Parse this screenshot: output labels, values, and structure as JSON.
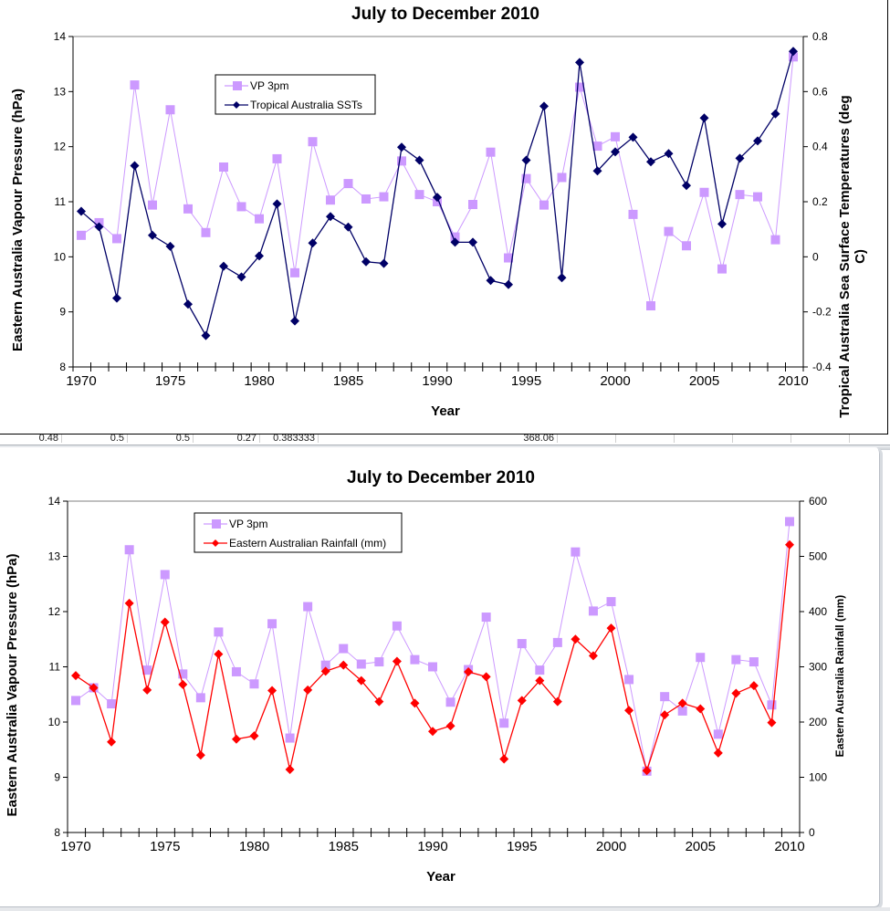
{
  "spreadsheet_strip": {
    "cells": [
      "0.48",
      "0.5",
      "0.5",
      "0.27",
      "0.383333",
      "368.06"
    ]
  },
  "chart_data": [
    {
      "type": "line",
      "title": "July to December 2010",
      "xlabel": "Year",
      "ylabel": "Eastern Australia Vapour Pressure (hPa)",
      "y2label": "Tropical Australia Sea Surface Temperatures (deg C)",
      "y2label_lines": [
        "Tropical Australia Sea Surface Temperatures (deg",
        "C)"
      ],
      "x": [
        1970,
        1971,
        1972,
        1973,
        1974,
        1975,
        1976,
        1977,
        1978,
        1979,
        1980,
        1981,
        1982,
        1983,
        1984,
        1985,
        1986,
        1987,
        1988,
        1989,
        1990,
        1991,
        1992,
        1993,
        1994,
        1995,
        1996,
        1997,
        1998,
        1999,
        2000,
        2001,
        2002,
        2003,
        2004,
        2005,
        2006,
        2007,
        2008,
        2009,
        2010
      ],
      "xticks": [
        "1970",
        "1975",
        "1980",
        "1985",
        "1990",
        "1995",
        "2000",
        "2005",
        "2010"
      ],
      "ylim": [
        8,
        14
      ],
      "yticks": [
        "8",
        "9",
        "10",
        "11",
        "12",
        "13",
        "14"
      ],
      "y2lim": [
        -0.4,
        0.8
      ],
      "y2ticks": [
        "-0.4",
        "-0.2",
        "0",
        "0.2",
        "0.4",
        "0.6",
        "0.8"
      ],
      "grid": false,
      "legend": "top-center",
      "series": [
        {
          "name": "VP 3pm",
          "axis": "left",
          "color": "#cc99ff",
          "marker": "square",
          "values": [
            10.39,
            10.62,
            10.33,
            13.12,
            10.94,
            12.67,
            10.87,
            10.44,
            11.63,
            10.91,
            10.69,
            11.78,
            9.71,
            12.09,
            11.03,
            11.33,
            11.05,
            11.09,
            11.74,
            11.13,
            11.0,
            10.36,
            10.95,
            11.9,
            9.98,
            11.42,
            10.94,
            11.44,
            13.08,
            12.01,
            12.18,
            10.77,
            9.11,
            10.46,
            10.2,
            11.17,
            9.78,
            11.13,
            11.09,
            10.31,
            13.63
          ]
        },
        {
          "name": "Tropical Australia SSTs",
          "axis": "right",
          "color": "#000066",
          "marker": "diamond",
          "values": [
            0.165,
            0.109,
            -0.15,
            0.331,
            0.078,
            0.038,
            -0.172,
            -0.286,
            -0.034,
            -0.073,
            0.003,
            0.192,
            -0.233,
            0.05,
            0.146,
            0.108,
            -0.018,
            -0.024,
            0.398,
            0.351,
            0.216,
            0.053,
            0.053,
            -0.086,
            -0.101,
            0.351,
            0.547,
            -0.076,
            0.706,
            0.312,
            0.381,
            0.434,
            0.345,
            0.375,
            0.259,
            0.504,
            0.119,
            0.358,
            0.421,
            0.519,
            0.746
          ]
        }
      ]
    },
    {
      "type": "line",
      "title": "July to December 2010",
      "xlabel": "Year",
      "ylabel": "Eastern Australia Vapour Pressure (hPa)",
      "y2label": "Eastern  Australia Rainfall (mm)",
      "x": [
        1970,
        1971,
        1972,
        1973,
        1974,
        1975,
        1976,
        1977,
        1978,
        1979,
        1980,
        1981,
        1982,
        1983,
        1984,
        1985,
        1986,
        1987,
        1988,
        1989,
        1990,
        1991,
        1992,
        1993,
        1994,
        1995,
        1996,
        1997,
        1998,
        1999,
        2000,
        2001,
        2002,
        2003,
        2004,
        2005,
        2006,
        2007,
        2008,
        2009,
        2010
      ],
      "xticks": [
        "1970",
        "1975",
        "1980",
        "1985",
        "1990",
        "1995",
        "2000",
        "2005",
        "2010"
      ],
      "ylim": [
        8,
        14
      ],
      "yticks": [
        "8",
        "9",
        "10",
        "11",
        "12",
        "13",
        "14"
      ],
      "y2lim": [
        0,
        600
      ],
      "y2ticks": [
        "0",
        "100",
        "200",
        "300",
        "400",
        "500",
        "600"
      ],
      "grid": false,
      "legend": "top-center",
      "series": [
        {
          "name": "VP 3pm",
          "axis": "left",
          "color": "#cc99ff",
          "marker": "square",
          "values": [
            10.39,
            10.62,
            10.33,
            13.12,
            10.94,
            12.67,
            10.87,
            10.44,
            11.63,
            10.91,
            10.69,
            11.78,
            9.71,
            12.09,
            11.03,
            11.33,
            11.05,
            11.09,
            11.74,
            11.13,
            11.0,
            10.36,
            10.95,
            11.9,
            9.98,
            11.42,
            10.94,
            11.44,
            13.08,
            12.01,
            12.18,
            10.77,
            9.11,
            10.46,
            10.2,
            11.17,
            9.78,
            11.13,
            11.09,
            10.31,
            13.63
          ]
        },
        {
          "name": "Eastern Australian Rainfall (mm)",
          "axis": "right",
          "color": "#ff0000",
          "marker": "diamond",
          "values": [
            284,
            262,
            164,
            415,
            258,
            381,
            268,
            140,
            323,
            169,
            175,
            257,
            114,
            258,
            292,
            303,
            275,
            237,
            310,
            234,
            183,
            193,
            291,
            282,
            133,
            239,
            275,
            237,
            350,
            320,
            370,
            221,
            112,
            213,
            234,
            224,
            144,
            252,
            266,
            199,
            521
          ]
        }
      ]
    }
  ]
}
